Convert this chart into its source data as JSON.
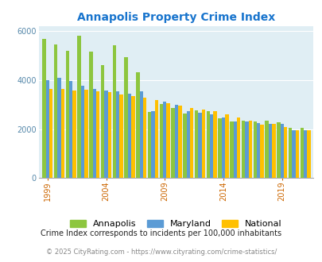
{
  "title": "Annapolis Property Crime Index",
  "title_color": "#1874CD",
  "subtitle": "Crime Index corresponds to incidents per 100,000 inhabitants",
  "footer": "© 2025 CityRating.com - https://www.cityrating.com/crime-statistics/",
  "years": [
    1999,
    2000,
    2001,
    2002,
    2003,
    2004,
    2005,
    2006,
    2007,
    2008,
    2009,
    2010,
    2011,
    2012,
    2013,
    2014,
    2015,
    2016,
    2017,
    2018,
    2019,
    2020,
    2021
  ],
  "annapolis": [
    5680,
    5440,
    5210,
    5800,
    5150,
    4600,
    5430,
    4940,
    4330,
    2710,
    3010,
    2870,
    2640,
    2760,
    2750,
    2450,
    2310,
    2340,
    2300,
    2340,
    2280,
    2050,
    2060
  ],
  "maryland": [
    4010,
    4100,
    3970,
    3760,
    3640,
    3580,
    3530,
    3450,
    3530,
    2750,
    3130,
    3000,
    2720,
    2680,
    2620,
    2470,
    2320,
    2310,
    2260,
    2220,
    2230,
    1970,
    1960
  ],
  "national": [
    3650,
    3650,
    3590,
    3620,
    3540,
    3510,
    3430,
    3340,
    3270,
    3180,
    3050,
    2950,
    2870,
    2810,
    2720,
    2600,
    2490,
    2360,
    2190,
    2200,
    2100,
    1960,
    1960
  ],
  "annapolis_color": "#8DC63F",
  "maryland_color": "#5B9BD5",
  "national_color": "#FFC000",
  "background_color": "#E0EEF4",
  "ylim": [
    0,
    6200
  ],
  "yticks": [
    0,
    2000,
    4000,
    6000
  ],
  "bar_width": 0.3,
  "legend_labels": [
    "Annapolis",
    "Maryland",
    "National"
  ],
  "xtick_color": "#CC6600",
  "ytick_color": "#5588AA",
  "grid_color": "#FFFFFF",
  "subtitle_color": "#222222",
  "footer_color": "#888888"
}
